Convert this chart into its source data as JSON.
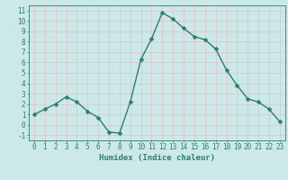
{
  "x": [
    0,
    1,
    2,
    3,
    4,
    5,
    6,
    7,
    8,
    9,
    10,
    11,
    12,
    13,
    14,
    15,
    16,
    17,
    18,
    19,
    20,
    21,
    22,
    23
  ],
  "y": [
    1,
    1.5,
    2,
    2.7,
    2.2,
    1.3,
    0.7,
    -0.7,
    -0.8,
    2.2,
    6.3,
    8.3,
    10.8,
    10.2,
    9.3,
    8.5,
    8.2,
    7.3,
    5.3,
    3.8,
    2.5,
    2.2,
    1.5,
    0.3
  ],
  "line_color": "#2e7d6e",
  "marker": "D",
  "marker_size": 2.5,
  "line_width": 1.0,
  "bg_color": "#cce8e8",
  "grid_color": "#e8b8b8",
  "xlabel": "Humidex (Indice chaleur)",
  "xlim": [
    -0.5,
    23.5
  ],
  "ylim": [
    -1.5,
    11.5
  ],
  "xticks": [
    0,
    1,
    2,
    3,
    4,
    5,
    6,
    7,
    8,
    9,
    10,
    11,
    12,
    13,
    14,
    15,
    16,
    17,
    18,
    19,
    20,
    21,
    22,
    23
  ],
  "yticks": [
    -1,
    0,
    1,
    2,
    3,
    4,
    5,
    6,
    7,
    8,
    9,
    10,
    11
  ],
  "tick_fontsize": 5.5,
  "xlabel_fontsize": 6.5
}
